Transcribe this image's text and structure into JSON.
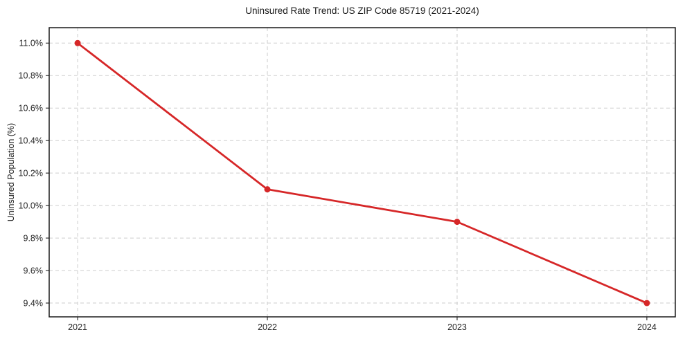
{
  "figure": {
    "background": "#ffffff"
  },
  "chart_data": {
    "type": "line",
    "title": "Uninsured Rate Trend: US ZIP Code 85719 (2021-2024)",
    "xlabel": "",
    "ylabel": "Uninsured Population (%)",
    "categories": [
      "2021",
      "2022",
      "2023",
      "2024"
    ],
    "x": [
      2021,
      2022,
      2023,
      2024
    ],
    "series": [
      {
        "name": "Uninsured rate",
        "values": [
          11.0,
          10.1,
          9.9,
          9.4
        ]
      }
    ],
    "yticks": [
      9.4,
      9.6,
      9.8,
      10.0,
      10.2,
      10.4,
      10.6,
      10.8,
      11.0
    ],
    "ytick_labels": [
      "9.4%",
      "9.6%",
      "9.8%",
      "10.0%",
      "10.2%",
      "10.4%",
      "10.6%",
      "10.8%",
      "11.0%"
    ],
    "xlim": [
      2020.85,
      2024.15
    ],
    "ylim": [
      9.315,
      11.095
    ],
    "grid": true,
    "grid_style": "dashed",
    "legend_position": "none",
    "style": {
      "line_color": "#d62728",
      "marker": "circle",
      "marker_color": "#d62728",
      "grid_color": "#cdcdcd",
      "axis_color": "#1a1a1a",
      "tick_color": "#333333",
      "tick_label_color": "#262626",
      "title_color": "#1a1a1a"
    }
  }
}
